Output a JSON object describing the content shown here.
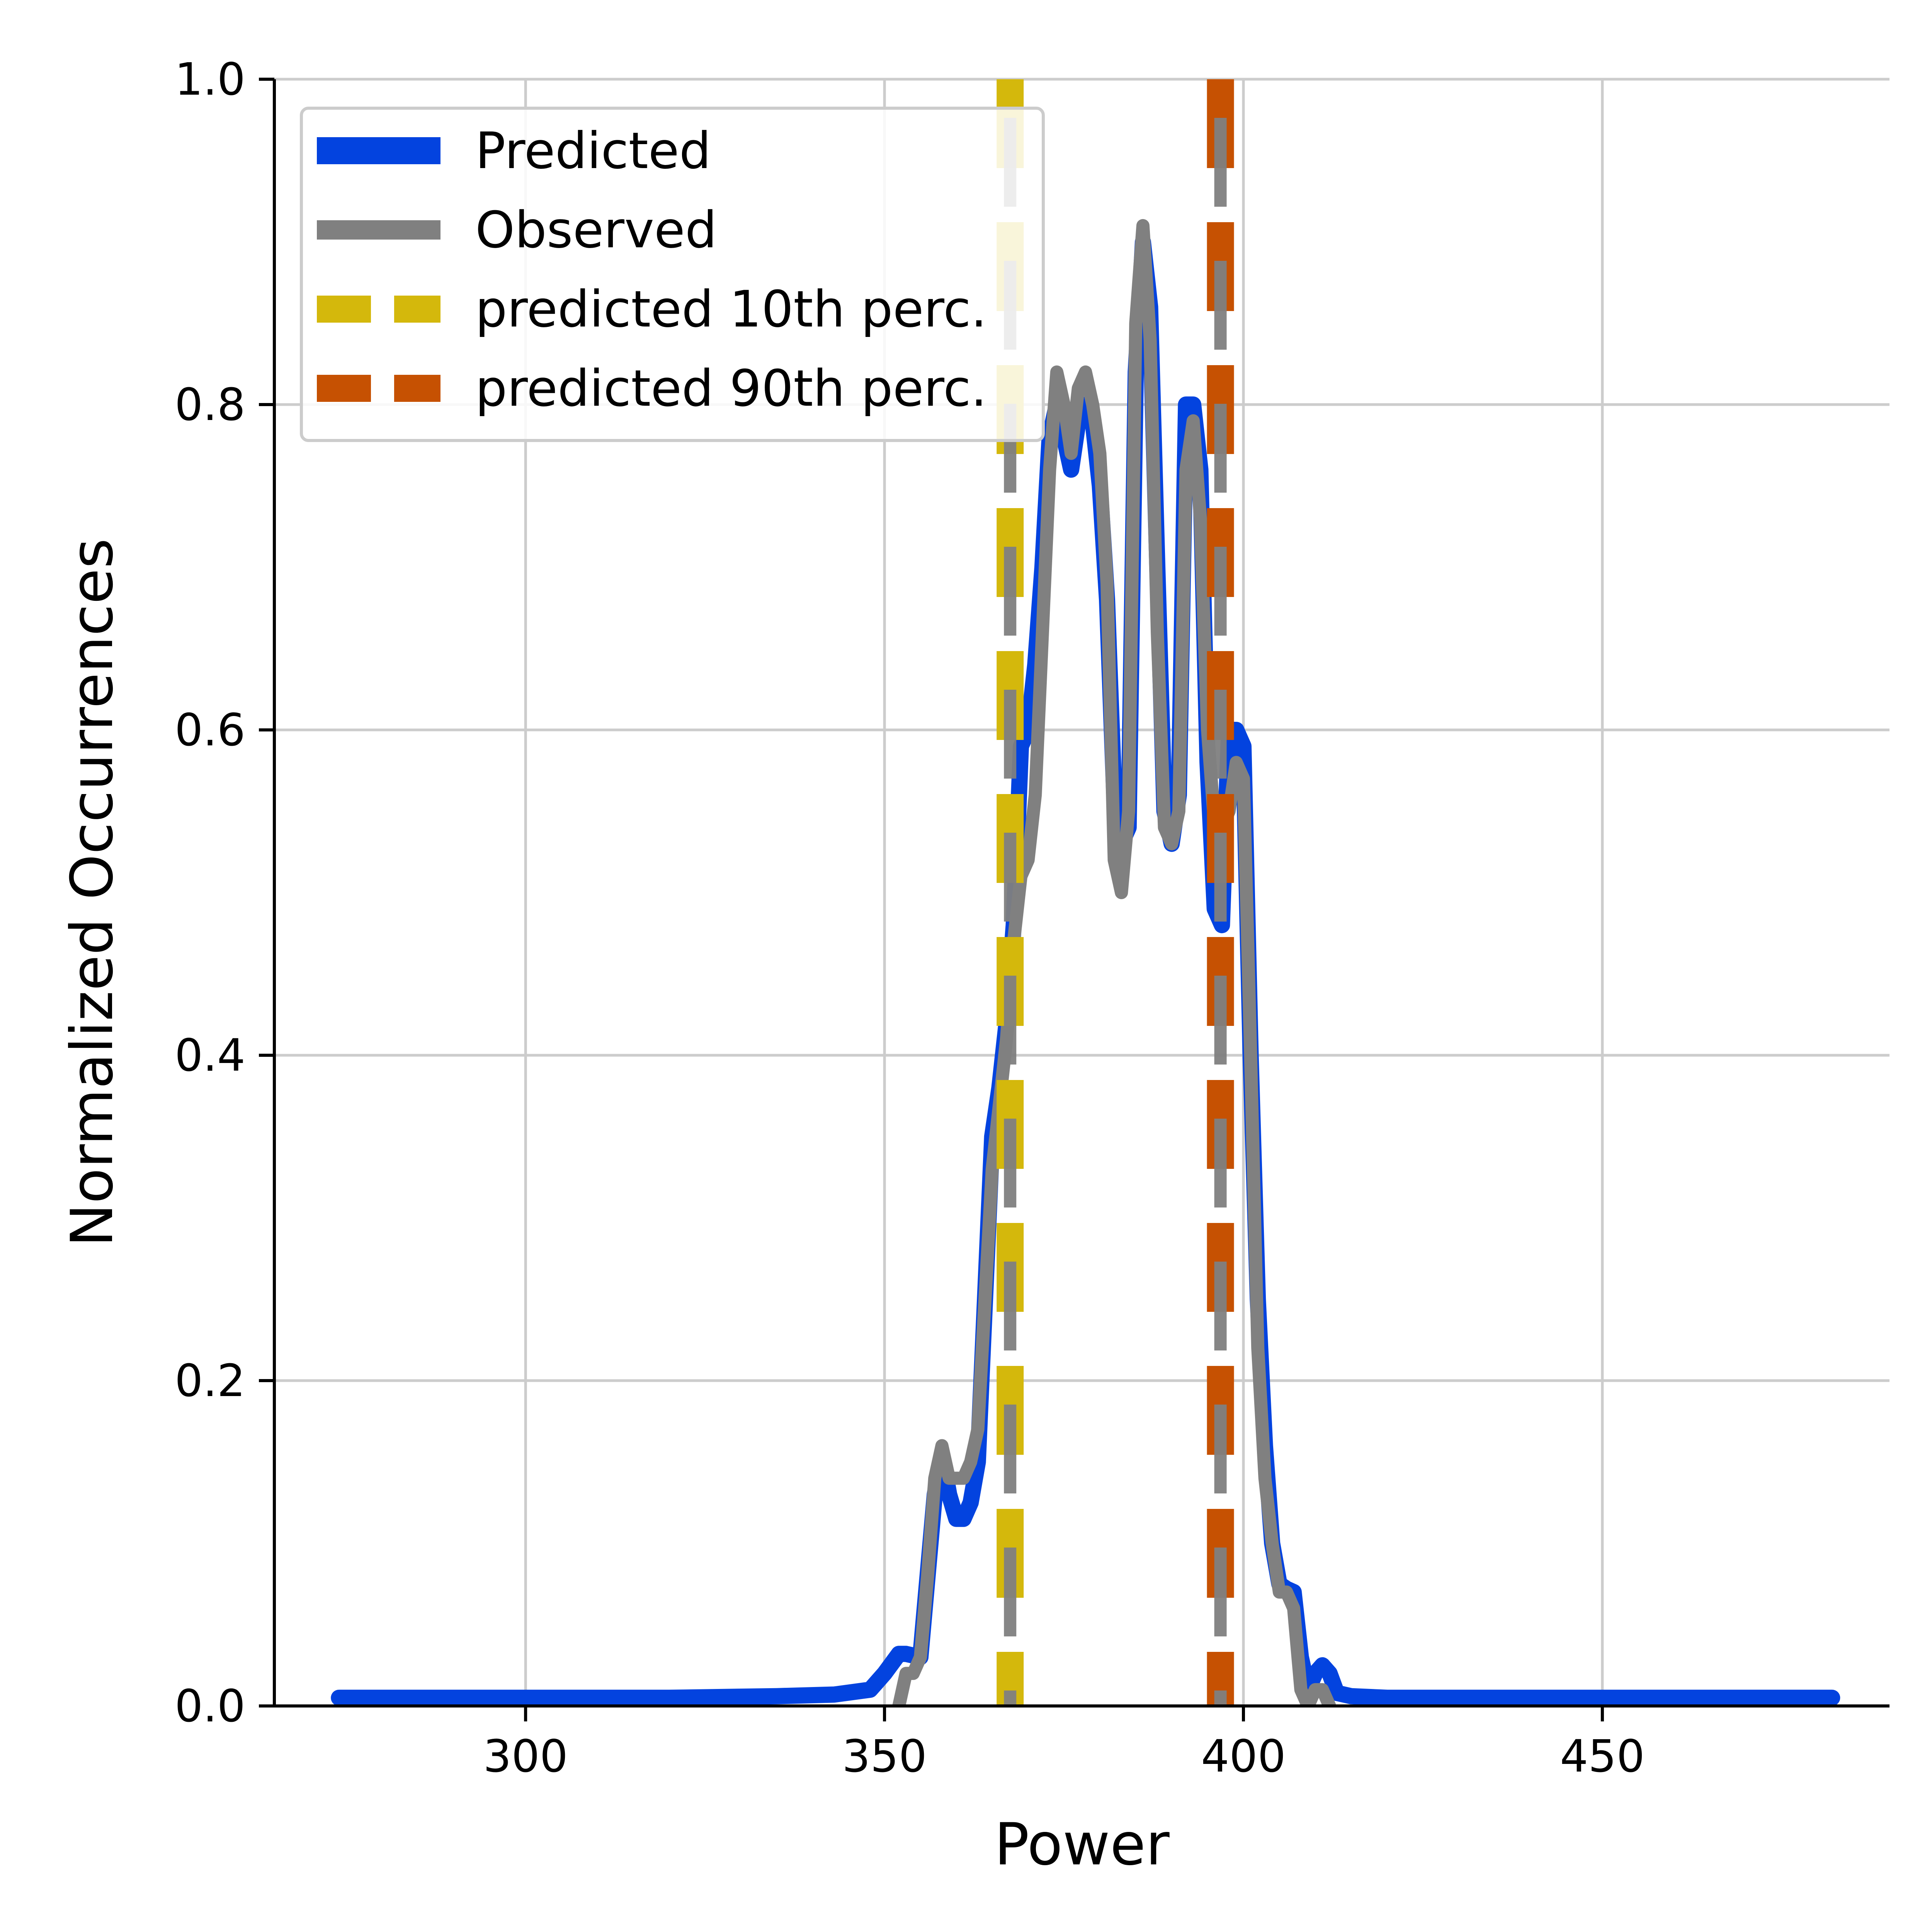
{
  "chart_data": {
    "type": "line",
    "title": "",
    "xlabel": "Power",
    "ylabel": "Normalized Occurrences",
    "xlim": [
      265,
      490
    ],
    "ylim": [
      0,
      1.0
    ],
    "x_ticks": [
      300,
      350,
      400,
      450
    ],
    "x_tick_labels": [
      "300",
      "350",
      "400",
      "450"
    ],
    "y_ticks": [
      0.0,
      0.2,
      0.4,
      0.6,
      0.8,
      1.0
    ],
    "y_tick_labels": [
      "0.0",
      "0.2",
      "0.4",
      "0.6",
      "0.8",
      "1.0"
    ],
    "grid": true,
    "legend_position": "top-left",
    "series": [
      {
        "name": "Predicted",
        "color": "#0343df",
        "x": [
          274,
          300,
          320,
          335,
          343,
          348,
          350,
          352,
          353,
          355,
          356,
          357,
          358,
          359,
          360,
          361,
          362,
          363,
          364,
          365,
          366,
          367,
          368,
          369,
          370,
          371,
          372,
          373,
          374,
          375,
          376,
          377,
          378,
          379,
          380,
          381,
          382,
          383,
          384,
          385,
          386,
          387,
          388,
          389,
          390,
          391,
          392,
          393,
          394,
          395,
          396,
          397,
          398,
          399,
          400,
          401,
          402,
          403,
          404,
          405,
          406,
          407,
          408,
          409,
          410,
          411,
          412,
          413,
          415,
          420,
          450,
          482
        ],
        "y": [
          0.005,
          0.005,
          0.005,
          0.006,
          0.007,
          0.01,
          0.02,
          0.032,
          0.032,
          0.03,
          0.08,
          0.13,
          0.155,
          0.13,
          0.115,
          0.115,
          0.125,
          0.15,
          0.25,
          0.35,
          0.38,
          0.42,
          0.48,
          0.59,
          0.6,
          0.64,
          0.7,
          0.78,
          0.8,
          0.78,
          0.76,
          0.79,
          0.8,
          0.79,
          0.75,
          0.68,
          0.56,
          0.53,
          0.54,
          0.82,
          0.9,
          0.86,
          0.7,
          0.55,
          0.53,
          0.56,
          0.8,
          0.8,
          0.76,
          0.58,
          0.49,
          0.48,
          0.6,
          0.6,
          0.59,
          0.4,
          0.25,
          0.16,
          0.1,
          0.075,
          0.072,
          0.07,
          0.03,
          0.01,
          0.02,
          0.025,
          0.02,
          0.008,
          0.006,
          0.005,
          0.005,
          0.005
        ]
      },
      {
        "name": "Observed",
        "color": "#808080",
        "x": [
          352,
          353,
          354,
          355,
          356,
          357,
          358,
          359,
          360,
          361,
          362,
          363,
          364,
          365,
          366,
          367,
          368,
          369,
          370,
          371,
          372,
          373,
          374,
          375,
          376,
          377,
          378,
          379,
          380,
          381,
          382,
          383,
          384,
          385,
          386,
          387,
          388,
          389,
          390,
          391,
          392,
          393,
          394,
          395,
          396,
          397,
          398,
          399,
          400,
          401,
          402,
          403,
          404,
          405,
          406,
          407,
          408,
          409,
          410,
          411,
          412
        ],
        "y": [
          0.0,
          0.02,
          0.02,
          0.03,
          0.08,
          0.14,
          0.16,
          0.14,
          0.14,
          0.14,
          0.15,
          0.17,
          0.25,
          0.33,
          0.37,
          0.41,
          0.47,
          0.51,
          0.52,
          0.56,
          0.66,
          0.76,
          0.82,
          0.8,
          0.77,
          0.81,
          0.82,
          0.8,
          0.77,
          0.69,
          0.52,
          0.5,
          0.55,
          0.85,
          0.91,
          0.84,
          0.66,
          0.54,
          0.53,
          0.55,
          0.76,
          0.79,
          0.73,
          0.6,
          0.54,
          0.54,
          0.55,
          0.58,
          0.57,
          0.4,
          0.22,
          0.14,
          0.1,
          0.07,
          0.07,
          0.06,
          0.01,
          0.0,
          0.01,
          0.01,
          0.0
        ]
      }
    ],
    "reference_lines": [
      {
        "name": "predicted 10th perc.",
        "color": "#d4b80c",
        "x": 367.5
      },
      {
        "name": "predicted 90th perc.",
        "color": "#c65102",
        "x": 396.8
      }
    ],
    "observed_reference_color": "#808080"
  }
}
